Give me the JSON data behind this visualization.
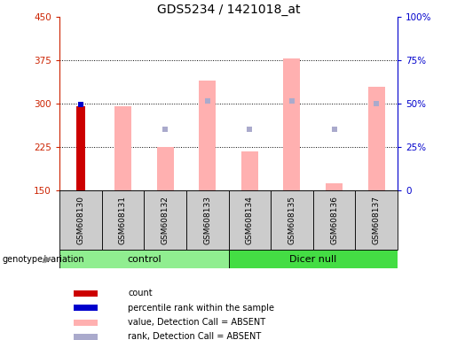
{
  "title": "GDS5234 / 1421018_at",
  "samples": [
    "GSM608130",
    "GSM608131",
    "GSM608132",
    "GSM608133",
    "GSM608134",
    "GSM608135",
    "GSM608136",
    "GSM608137"
  ],
  "ylim_left": [
    150,
    450
  ],
  "ylim_right": [
    0,
    100
  ],
  "yticks_left": [
    150,
    225,
    300,
    375,
    450
  ],
  "yticks_right": [
    0,
    25,
    50,
    75,
    100
  ],
  "left_axis_color": "#cc2200",
  "right_axis_color": "#0000cc",
  "bar_values_absent": [
    null,
    295,
    225,
    340,
    218,
    378,
    163,
    330
  ],
  "rank_values_absent": [
    null,
    null,
    255,
    305,
    255,
    305,
    255,
    300
  ],
  "count_value": 295,
  "count_sample_idx": 0,
  "percentile_rank_value": 298,
  "count_color": "#cc0000",
  "percentile_color": "#0000cc",
  "bar_absent_color": "#ffb0b0",
  "rank_absent_color": "#aaaacc",
  "legend_items": [
    {
      "label": "count",
      "color": "#cc0000"
    },
    {
      "label": "percentile rank within the sample",
      "color": "#0000cc"
    },
    {
      "label": "value, Detection Call = ABSENT",
      "color": "#ffb0b0"
    },
    {
      "label": "rank, Detection Call = ABSENT",
      "color": "#aaaacc"
    }
  ],
  "group_info": [
    {
      "label": "control",
      "start": 0,
      "end": 3,
      "color": "#90ee90"
    },
    {
      "label": "Dicer null",
      "start": 4,
      "end": 7,
      "color": "#44dd44"
    }
  ],
  "sample_box_color": "#cccccc",
  "plot_bg": "#ffffff"
}
